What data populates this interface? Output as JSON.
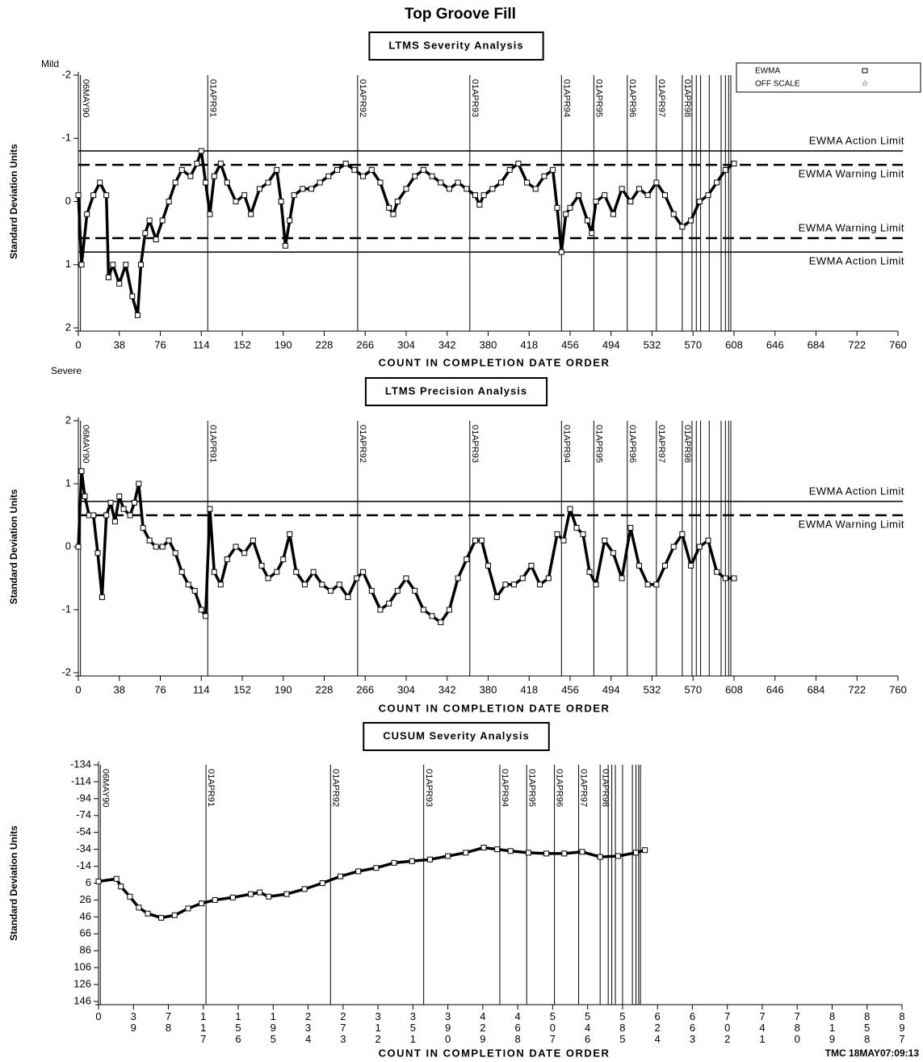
{
  "title": "Top Groove Fill",
  "footer": "TMC   18MAY07:09:13",
  "date_lines": {
    "x": [
      2,
      120,
      259,
      363,
      448,
      478,
      509,
      536,
      560,
      569,
      573,
      577,
      585,
      596,
      600,
      603,
      605
    ],
    "labels": [
      "06MAY90",
      "01APR91",
      "01APR92",
      "01APR93",
      "01APR94",
      "01APR95",
      "01APR96",
      "01APR97",
      "01APR98",
      null,
      null,
      null,
      null,
      null,
      null,
      null,
      null
    ]
  },
  "chart_data": [
    {
      "type": "line",
      "title": "LTMS Severity Analysis",
      "ylabel": "Standard Deviation Units",
      "xlabel": "COUNT IN COMPLETION DATE ORDER",
      "top_note": "Mild",
      "bottom_note": "Severe",
      "offscale_label": "OFF SCALE",
      "xlim": [
        0,
        760
      ],
      "xticks": [
        0,
        38,
        76,
        114,
        152,
        190,
        228,
        266,
        304,
        342,
        380,
        418,
        456,
        494,
        532,
        570,
        608,
        646,
        684,
        722,
        760
      ],
      "ylim": [
        2,
        -2
      ],
      "yticks": [
        -2,
        -1,
        0,
        1,
        2
      ],
      "limits": [
        {
          "label": "EWMA Action Limit",
          "value": -0.8,
          "style": "solid"
        },
        {
          "label": "EWMA Warning Limit",
          "value": -0.58,
          "style": "dashed"
        },
        {
          "label": "EWMA Warning Limit",
          "value": 0.58,
          "style": "dashed"
        },
        {
          "label": "EWMA Action Limit",
          "value": 0.8,
          "style": "solid"
        }
      ],
      "series": [
        {
          "name": "EWMA",
          "color": "#000000",
          "x": [
            0,
            3,
            8,
            14,
            20,
            26,
            28,
            32,
            38,
            44,
            50,
            55,
            58,
            62,
            66,
            72,
            78,
            84,
            90,
            96,
            104,
            110,
            114,
            118,
            122,
            126,
            132,
            138,
            146,
            154,
            160,
            168,
            176,
            184,
            188,
            192,
            196,
            200,
            208,
            216,
            224,
            232,
            240,
            248,
            256,
            264,
            272,
            280,
            288,
            292,
            296,
            304,
            312,
            320,
            328,
            336,
            344,
            352,
            360,
            368,
            372,
            376,
            384,
            392,
            400,
            408,
            416,
            424,
            432,
            440,
            444,
            448,
            452,
            456,
            464,
            472,
            476,
            480,
            488,
            496,
            504,
            512,
            520,
            528,
            536,
            544,
            552,
            560,
            568,
            576,
            584,
            592,
            600,
            608
          ],
          "values": [
            -0.1,
            1.0,
            0.2,
            -0.1,
            -0.3,
            -0.1,
            1.2,
            1.0,
            1.3,
            1.0,
            1.5,
            1.8,
            1.0,
            0.5,
            0.3,
            0.6,
            0.3,
            0,
            -0.3,
            -0.5,
            -0.4,
            -0.6,
            -0.8,
            -0.3,
            0.2,
            -0.4,
            -0.6,
            -0.3,
            0,
            -0.1,
            0.2,
            -0.2,
            -0.3,
            -0.5,
            0,
            0.7,
            0.3,
            -0.1,
            -0.2,
            -0.2,
            -0.3,
            -0.4,
            -0.5,
            -0.6,
            -0.5,
            -0.4,
            -0.5,
            -0.3,
            0.1,
            0.2,
            0,
            -0.2,
            -0.4,
            -0.5,
            -0.4,
            -0.3,
            -0.2,
            -0.3,
            -0.2,
            -0.1,
            0.05,
            -0.1,
            -0.2,
            -0.3,
            -0.5,
            -0.6,
            -0.3,
            -0.2,
            -0.4,
            -0.5,
            0.1,
            0.8,
            0.2,
            0.1,
            -0.1,
            0.3,
            0.5,
            0,
            -0.1,
            0.2,
            -0.2,
            0,
            -0.2,
            -0.1,
            -0.3,
            -0.1,
            0.2,
            0.4,
            0.3,
            0,
            -0.1,
            -0.3,
            -0.5,
            -0.6
          ]
        }
      ]
    },
    {
      "type": "line",
      "title": "LTMS Precision Analysis",
      "ylabel": "Standard Deviation Units",
      "xlabel": "COUNT IN COMPLETION DATE ORDER",
      "xlim": [
        0,
        760
      ],
      "xticks": [
        0,
        38,
        76,
        114,
        152,
        190,
        228,
        266,
        304,
        342,
        380,
        418,
        456,
        494,
        532,
        570,
        608,
        646,
        684,
        722,
        760
      ],
      "ylim": [
        -2,
        2
      ],
      "yticks": [
        -2,
        -1,
        0,
        1,
        2
      ],
      "limits": [
        {
          "label": "EWMA Action Limit",
          "value": 0.72,
          "style": "solid"
        },
        {
          "label": "EWMA Warning Limit",
          "value": 0.5,
          "style": "dashed"
        }
      ],
      "series": [
        {
          "name": "EWMA",
          "color": "#000000",
          "x": [
            0,
            3,
            6,
            10,
            14,
            18,
            22,
            26,
            30,
            34,
            38,
            42,
            48,
            52,
            56,
            60,
            66,
            72,
            78,
            84,
            90,
            96,
            102,
            108,
            114,
            118,
            122,
            126,
            132,
            138,
            146,
            154,
            162,
            170,
            176,
            184,
            190,
            196,
            202,
            210,
            218,
            226,
            234,
            242,
            250,
            258,
            264,
            272,
            280,
            288,
            296,
            304,
            312,
            320,
            328,
            336,
            344,
            352,
            360,
            368,
            374,
            380,
            388,
            396,
            404,
            412,
            420,
            428,
            436,
            444,
            450,
            456,
            462,
            468,
            474,
            480,
            488,
            496,
            504,
            512,
            520,
            528,
            536,
            544,
            552,
            560,
            568,
            576,
            584,
            592,
            600,
            608
          ],
          "values": [
            0,
            1.2,
            0.8,
            0.5,
            0.5,
            -0.1,
            -0.8,
            0.5,
            0.7,
            0.4,
            0.8,
            0.6,
            0.5,
            0.7,
            1.0,
            0.3,
            0.1,
            0,
            0,
            0.1,
            -0.1,
            -0.4,
            -0.6,
            -0.7,
            -1.0,
            -1.1,
            0.6,
            -0.4,
            -0.6,
            -0.2,
            0,
            -0.1,
            0.1,
            -0.3,
            -0.5,
            -0.4,
            -0.2,
            0.2,
            -0.4,
            -0.6,
            -0.4,
            -0.6,
            -0.7,
            -0.6,
            -0.8,
            -0.5,
            -0.4,
            -0.7,
            -1.0,
            -0.9,
            -0.7,
            -0.5,
            -0.7,
            -1.0,
            -1.1,
            -1.2,
            -1.0,
            -0.5,
            -0.2,
            0.1,
            0.1,
            -0.3,
            -0.8,
            -0.6,
            -0.6,
            -0.5,
            -0.3,
            -0.6,
            -0.5,
            0.2,
            0.1,
            0.6,
            0.3,
            0.2,
            -0.4,
            -0.6,
            0.1,
            -0.1,
            -0.5,
            0.3,
            -0.3,
            -0.6,
            -0.6,
            -0.3,
            0,
            0.2,
            -0.3,
            0,
            0.1,
            -0.4,
            -0.5,
            -0.5
          ]
        }
      ]
    },
    {
      "type": "line",
      "title": "CUSUM Severity Analysis",
      "ylabel": "Standard Deviation Units",
      "xlabel": "COUNT IN COMPLETION DATE ORDER",
      "stacked_xtick_labels": true,
      "xlim": [
        0,
        897
      ],
      "xticks": [
        0,
        39,
        78,
        117,
        156,
        195,
        234,
        273,
        312,
        351,
        390,
        429,
        468,
        507,
        546,
        585,
        624,
        663,
        702,
        741,
        780,
        819,
        858,
        897
      ],
      "ylim": [
        146,
        -134
      ],
      "yticks": [
        -134,
        -114,
        -94,
        -74,
        -54,
        -34,
        -14,
        6,
        26,
        46,
        66,
        86,
        106,
        126,
        146
      ],
      "series": [
        {
          "name": "CUSUM",
          "color": "#000000",
          "x": [
            0,
            20,
            25,
            35,
            45,
            55,
            70,
            85,
            100,
            115,
            130,
            150,
            170,
            180,
            190,
            210,
            230,
            250,
            270,
            290,
            310,
            330,
            350,
            370,
            390,
            410,
            430,
            445,
            460,
            480,
            500,
            520,
            540,
            560,
            580,
            600,
            610
          ],
          "values": [
            4,
            1,
            10,
            22,
            35,
            42,
            47,
            44,
            36,
            30,
            26,
            23,
            19,
            17,
            22,
            19,
            13,
            6,
            -2,
            -8,
            -12,
            -18,
            -20,
            -22,
            -26,
            -30,
            -36,
            -34,
            -32,
            -30,
            -29,
            -29,
            -31,
            -25,
            -26,
            -30,
            -33
          ]
        }
      ]
    }
  ]
}
